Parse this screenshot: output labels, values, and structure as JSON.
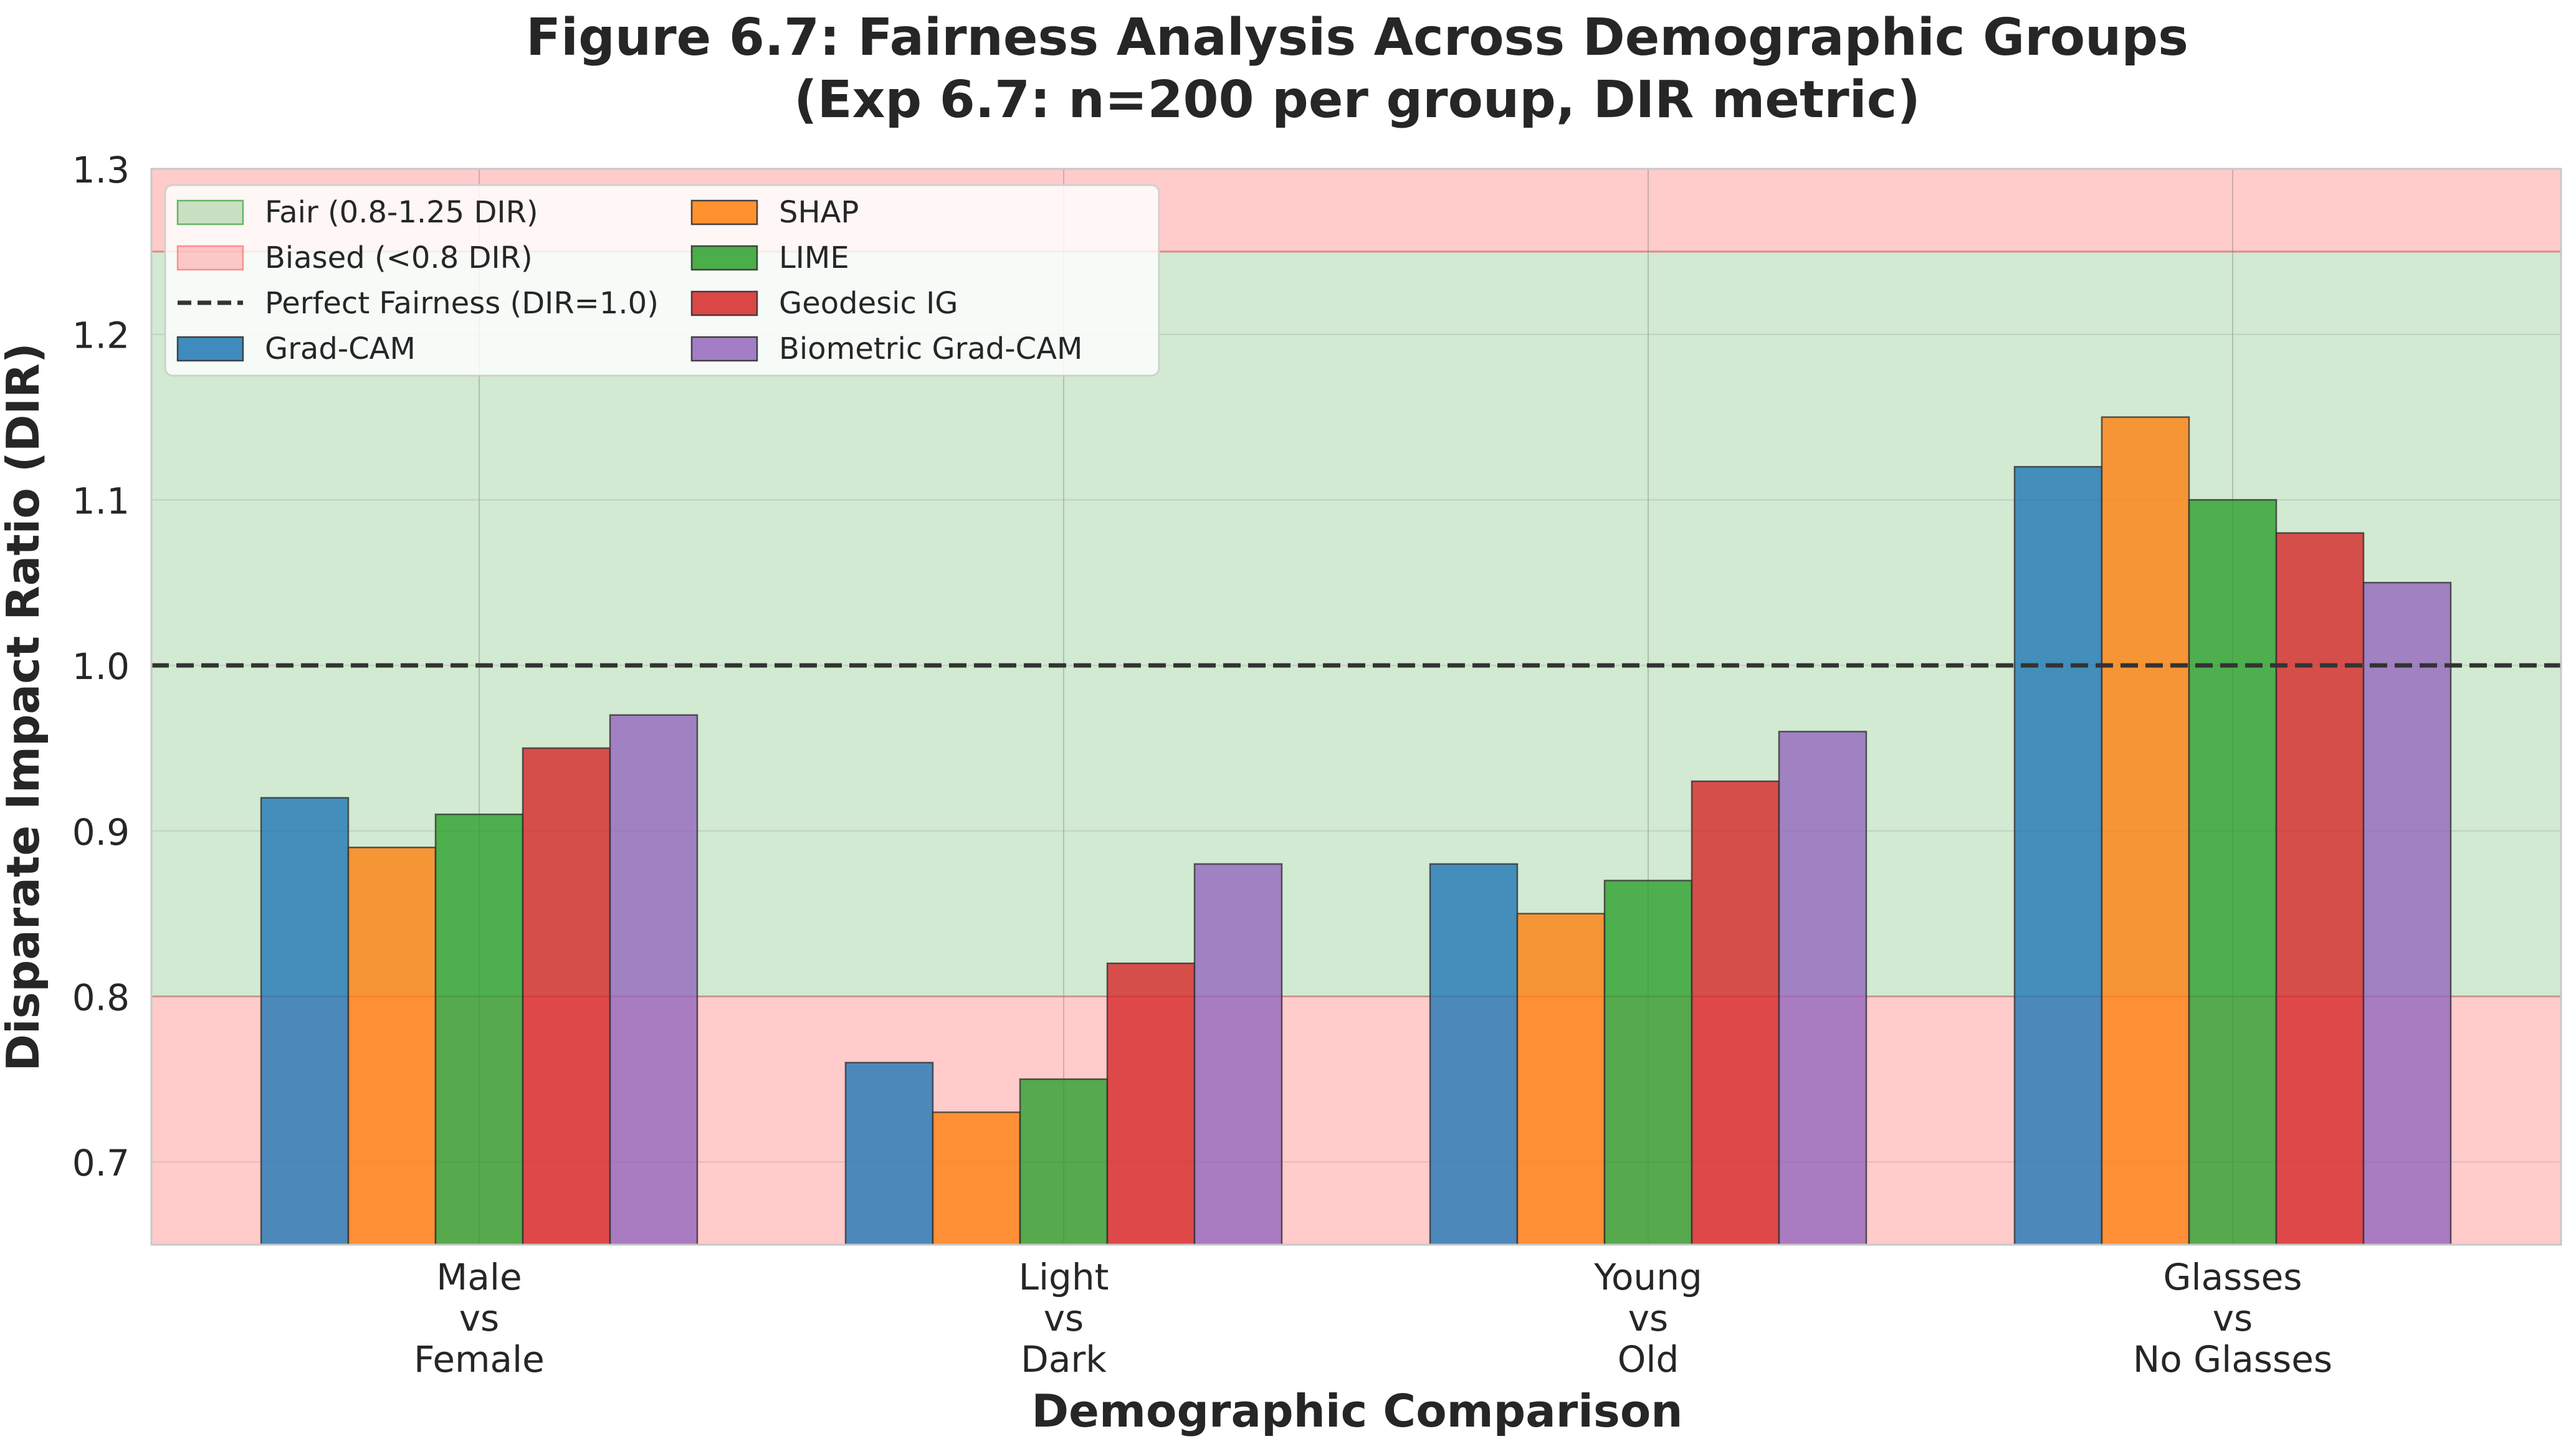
{
  "chart_data": {
    "type": "bar",
    "title_line1": "Figure 6.7: Fairness Analysis Across Demographic Groups",
    "title_line2": "(Exp 6.7: n=200 per group, DIR metric)",
    "xlabel": "Demographic Comparison",
    "ylabel": "Disparate Impact Ratio (DIR)",
    "ylim": [
      0.65,
      1.3
    ],
    "yticks": [
      0.7,
      0.8,
      0.9,
      1.0,
      1.1,
      1.2,
      1.3
    ],
    "ytick_labels": [
      "0.7",
      "0.8",
      "0.9",
      "1.0",
      "1.1",
      "1.2",
      "1.3"
    ],
    "grid": true,
    "legend_position": "top-left",
    "categories": [
      [
        "Male",
        "vs",
        "Female"
      ],
      [
        "Light",
        "vs",
        "Dark"
      ],
      [
        "Young",
        "vs",
        "Old"
      ],
      [
        "Glasses",
        "vs",
        "No Glasses"
      ]
    ],
    "series": [
      {
        "name": "Grad-CAM",
        "color": "#1f77b4",
        "values": [
          0.92,
          0.76,
          0.88,
          1.12
        ]
      },
      {
        "name": "SHAP",
        "color": "#ff7f0e",
        "values": [
          0.89,
          0.73,
          0.85,
          1.15
        ]
      },
      {
        "name": "LIME",
        "color": "#2ca02c",
        "values": [
          0.91,
          0.75,
          0.87,
          1.1
        ]
      },
      {
        "name": "Geodesic IG",
        "color": "#d62728",
        "values": [
          0.95,
          0.82,
          0.93,
          1.08
        ]
      },
      {
        "name": "Biometric Grad-CAM",
        "color": "#9467bd",
        "values": [
          0.97,
          0.88,
          0.96,
          1.05
        ]
      }
    ],
    "bands": [
      {
        "name": "Fair (0.8-1.25 DIR)",
        "from": 0.8,
        "to": 1.25,
        "color": "#2ca02c"
      },
      {
        "name": "Biased (<0.8 DIR)",
        "from": 0.65,
        "to": 0.8,
        "color": "#ff6b6b"
      },
      {
        "name": "",
        "from": 1.25,
        "to": 1.3,
        "color": "#ff6b6b"
      }
    ],
    "reference_line": {
      "name": "Perfect Fairness (DIR=1.0)",
      "y": 1.0,
      "color": "#333333"
    }
  }
}
